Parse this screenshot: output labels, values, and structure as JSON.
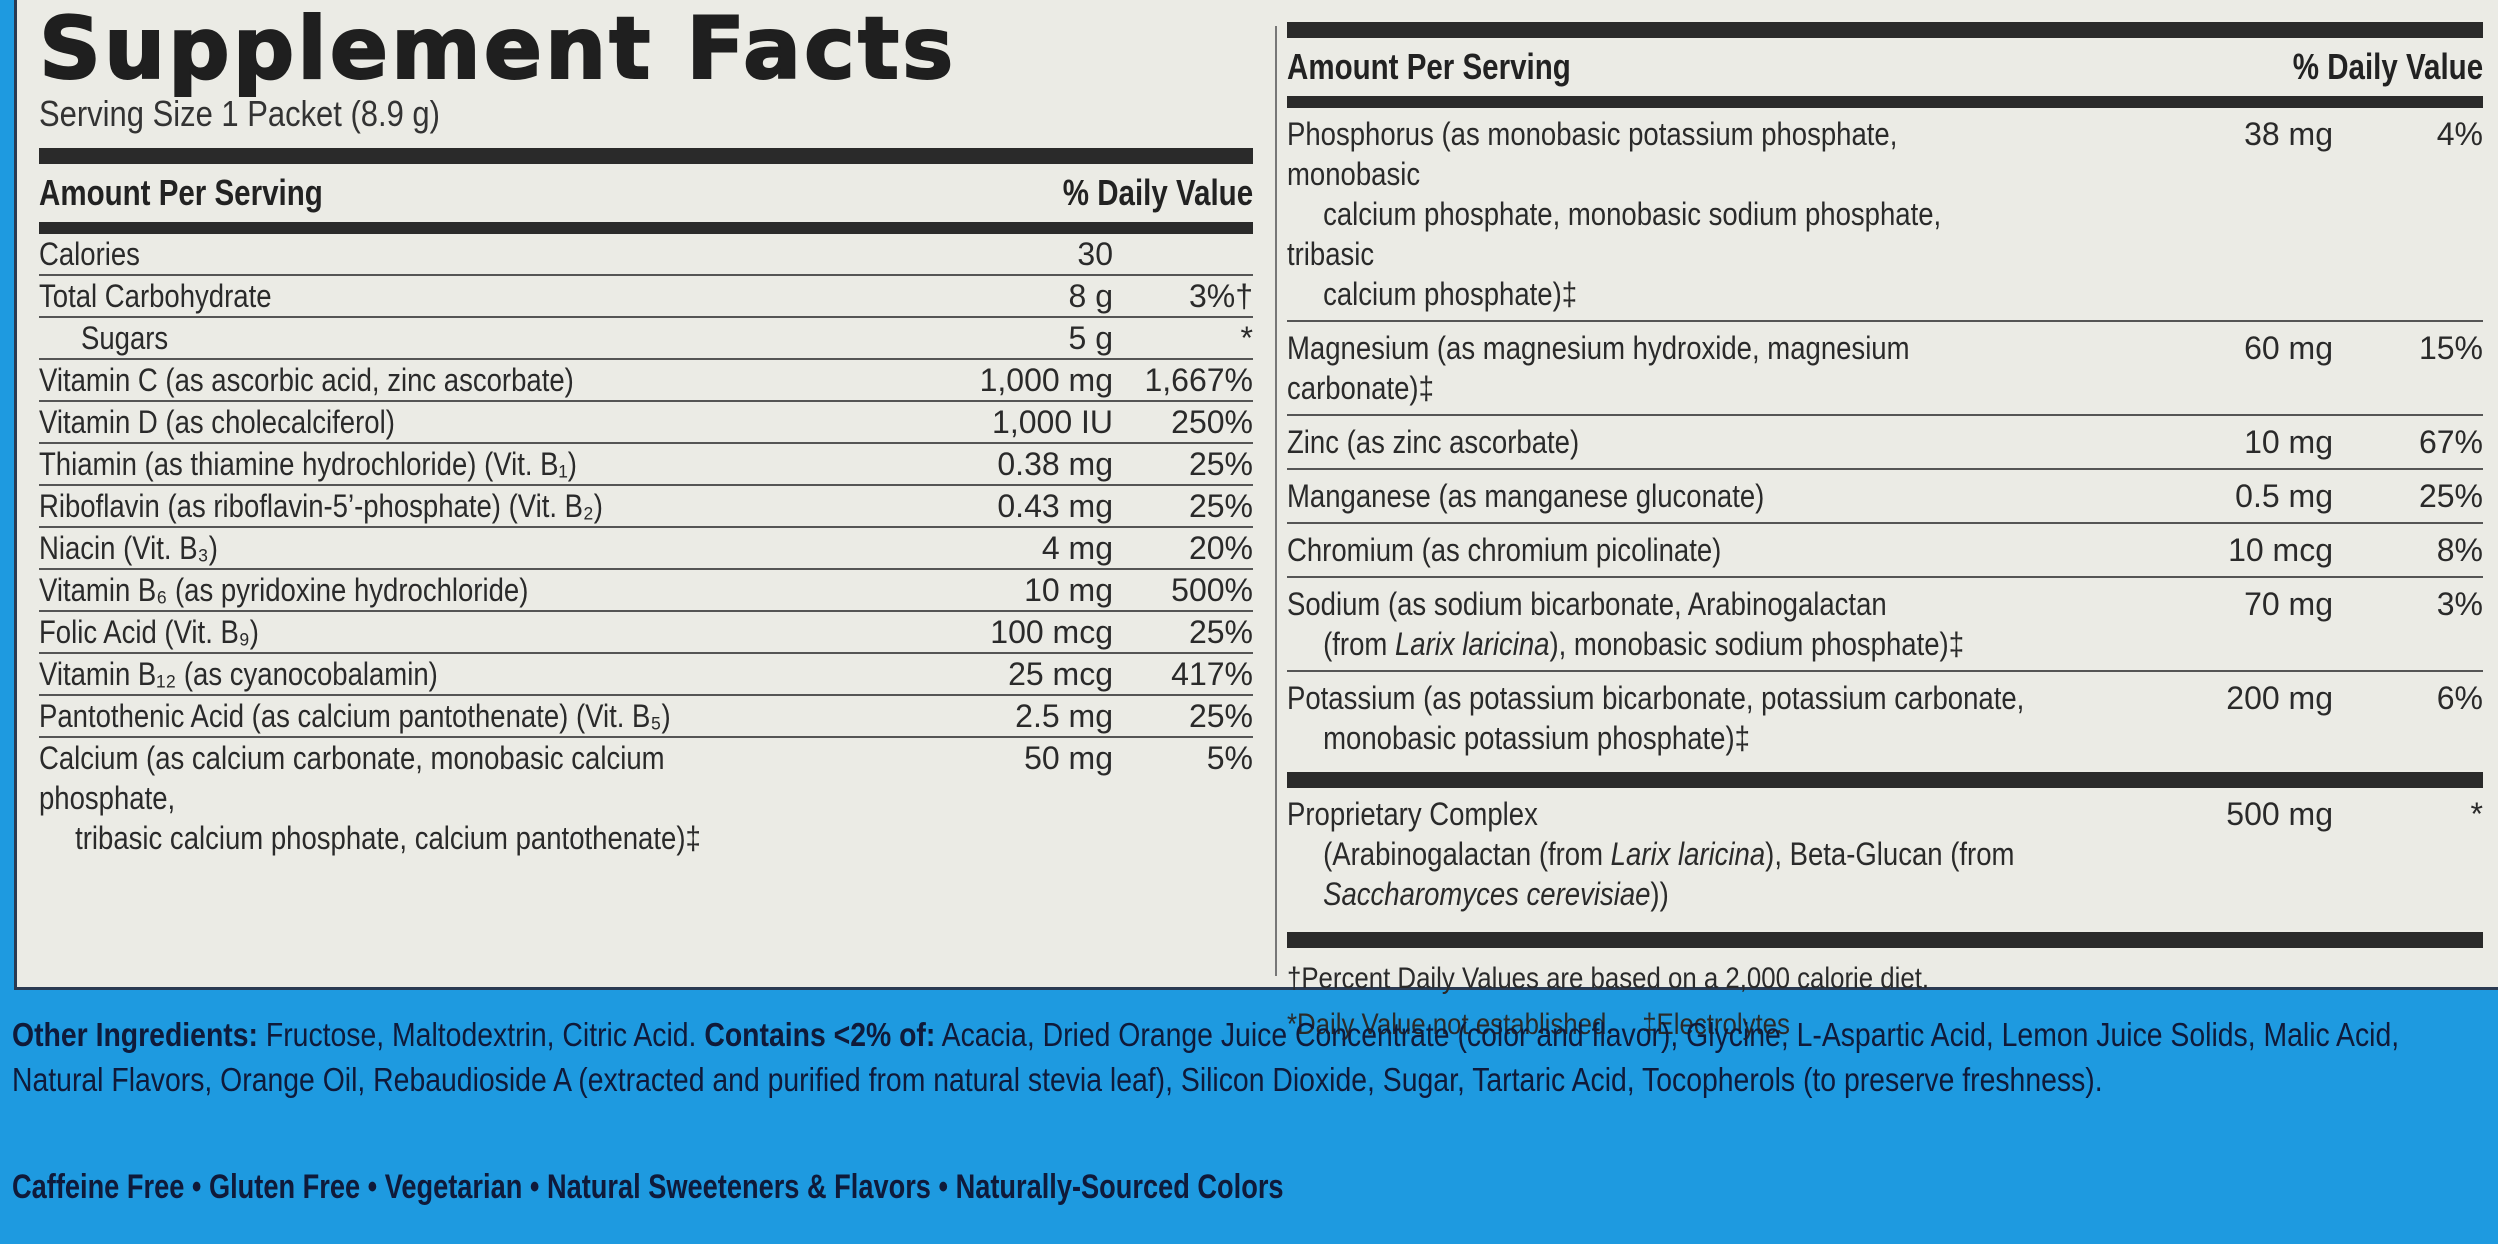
{
  "label": {
    "title": "Supplement Facts",
    "serving_size": "Serving Size 1 Packet (8.9 g)",
    "header_amount": "Amount Per Serving",
    "header_dv": "% Daily Value",
    "left_rows": [
      {
        "name": "Calories",
        "amount": "30",
        "dv": ""
      },
      {
        "name": "Total Carbohydrate",
        "amount": "8 g",
        "dv": "3%†"
      },
      {
        "name": "Sugars",
        "amount": "5 g",
        "dv": "*",
        "indent": true
      },
      {
        "name": "Vitamin C (as ascorbic acid, zinc ascorbate)",
        "amount": "1,000 mg",
        "dv": "1,667%"
      },
      {
        "name": "Vitamin D (as cholecalciferol)",
        "amount": "1,000 IU",
        "dv": "250%"
      },
      {
        "name": "Thiamin (as thiamine hydrochloride) (Vit. B₁)",
        "amount": "0.38 mg",
        "dv": "25%"
      },
      {
        "name": "Riboflavin (as riboflavin-5’-phosphate) (Vit. B₂)",
        "amount": "0.43 mg",
        "dv": "25%"
      },
      {
        "name": "Niacin (Vit. B₃)",
        "amount": "4 mg",
        "dv": "20%"
      },
      {
        "name": "Vitamin B₆ (as pyridoxine hydrochloride)",
        "amount": "10 mg",
        "dv": "500%"
      },
      {
        "name": "Folic Acid (Vit. B₉)",
        "amount": "100 mcg",
        "dv": "25%"
      },
      {
        "name": "Vitamin B₁₂ (as cyanocobalamin)",
        "amount": "25 mcg",
        "dv": "417%"
      },
      {
        "name": "Pantothenic Acid (as calcium pantothenate) (Vit. B₅)",
        "amount": "2.5 mg",
        "dv": "25%"
      },
      {
        "name": "Calcium (as calcium carbonate, monobasic calcium phosphate,",
        "name2": "tribasic calcium phosphate, calcium pantothenate)‡",
        "amount": "50 mg",
        "dv": "5%"
      }
    ],
    "right_rows": [
      {
        "name": "Phosphorus (as monobasic potassium phosphate, monobasic",
        "name2": "calcium phosphate, monobasic sodium phosphate, tribasic",
        "name3": "calcium phosphate)‡",
        "amount": "38 mg",
        "dv": "4%"
      },
      {
        "name": "Magnesium (as magnesium hydroxide, magnesium carbonate)‡",
        "amount": "60 mg",
        "dv": "15%"
      },
      {
        "name": "Zinc (as zinc ascorbate)",
        "amount": "10 mg",
        "dv": "67%"
      },
      {
        "name": "Manganese (as manganese gluconate)",
        "amount": "0.5 mg",
        "dv": "25%"
      },
      {
        "name": "Chromium (as chromium picolinate)",
        "amount": "10 mcg",
        "dv": "8%"
      },
      {
        "name": "Sodium (as sodium bicarbonate, Arabinogalactan",
        "name2a": "(from ",
        "name2i": "Larix laricina",
        "name2b": "), monobasic sodium phosphate)‡",
        "amount": "70 mg",
        "dv": "3%"
      },
      {
        "name": "Potassium (as potassium bicarbonate, potassium carbonate,",
        "name2": "monobasic potassium phosphate)‡",
        "amount": "200 mg",
        "dv": "6%"
      }
    ],
    "proprietary": {
      "name": "Proprietary Complex",
      "line2a": "(Arabinogalactan (from ",
      "line2i": "Larix laricina",
      "line2b": "), Beta-Glucan (from",
      "line3i": "Saccharomyces cerevisiae",
      "line3b": "))",
      "amount": "500 mg",
      "dv": "*"
    },
    "footnotes": {
      "dagger": "†Percent Daily Values are based on a 2,000 calorie diet.",
      "star": "*Daily Value not established.",
      "ddagger": "‡Electrolytes"
    }
  },
  "ingredients": {
    "other_label": "Other Ingredients:",
    "other_text": " Fructose, Maltodextrin, Citric Acid. ",
    "contains_label": "Contains <2% of:",
    "contains_text": " Acacia, Dried Orange Juice Concentrate (color and flavor), Glycine, L-Aspartic Acid, Lemon Juice Solids, Malic Acid, Natural Flavors, Orange Oil, Rebaudioside A (extracted and purified from natural stevia leaf), Silicon Dioxide, Sugar, Tartaric Acid, Tocopherols (to preserve freshness)."
  },
  "claims": "Caffeine Free • Gluten Free • Vegetarian • Natural Sweeteners & Flavors • Naturally-Sourced Colors",
  "colors": {
    "background_blue": "#1e9ae0",
    "panel": "#ebebe5",
    "text": "#222222",
    "ingredient_text": "#0f1a3a"
  }
}
